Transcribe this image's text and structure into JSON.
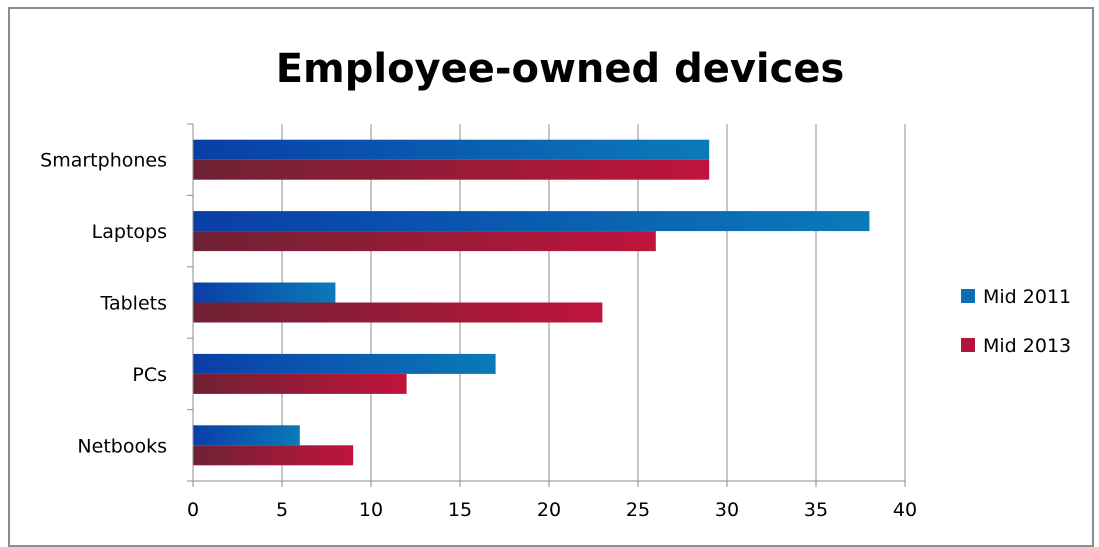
{
  "chart_data": {
    "type": "bar",
    "orientation": "horizontal",
    "title": "Employee-owned devices",
    "categories": [
      "Smartphones",
      "Laptops",
      "Tablets",
      "PCs",
      "Netbooks"
    ],
    "series": [
      {
        "name": "Mid 2011",
        "values": [
          29,
          38,
          8,
          17,
          6
        ],
        "color": "#0a6fb0"
      },
      {
        "name": "Mid 2013",
        "values": [
          29,
          26,
          23,
          12,
          9
        ],
        "color": "#b0163a"
      }
    ],
    "xlim": [
      0,
      40
    ],
    "xticks": [
      0,
      5,
      10,
      15,
      20,
      25,
      30,
      35,
      40
    ],
    "grid": true,
    "legend_position": "right"
  }
}
